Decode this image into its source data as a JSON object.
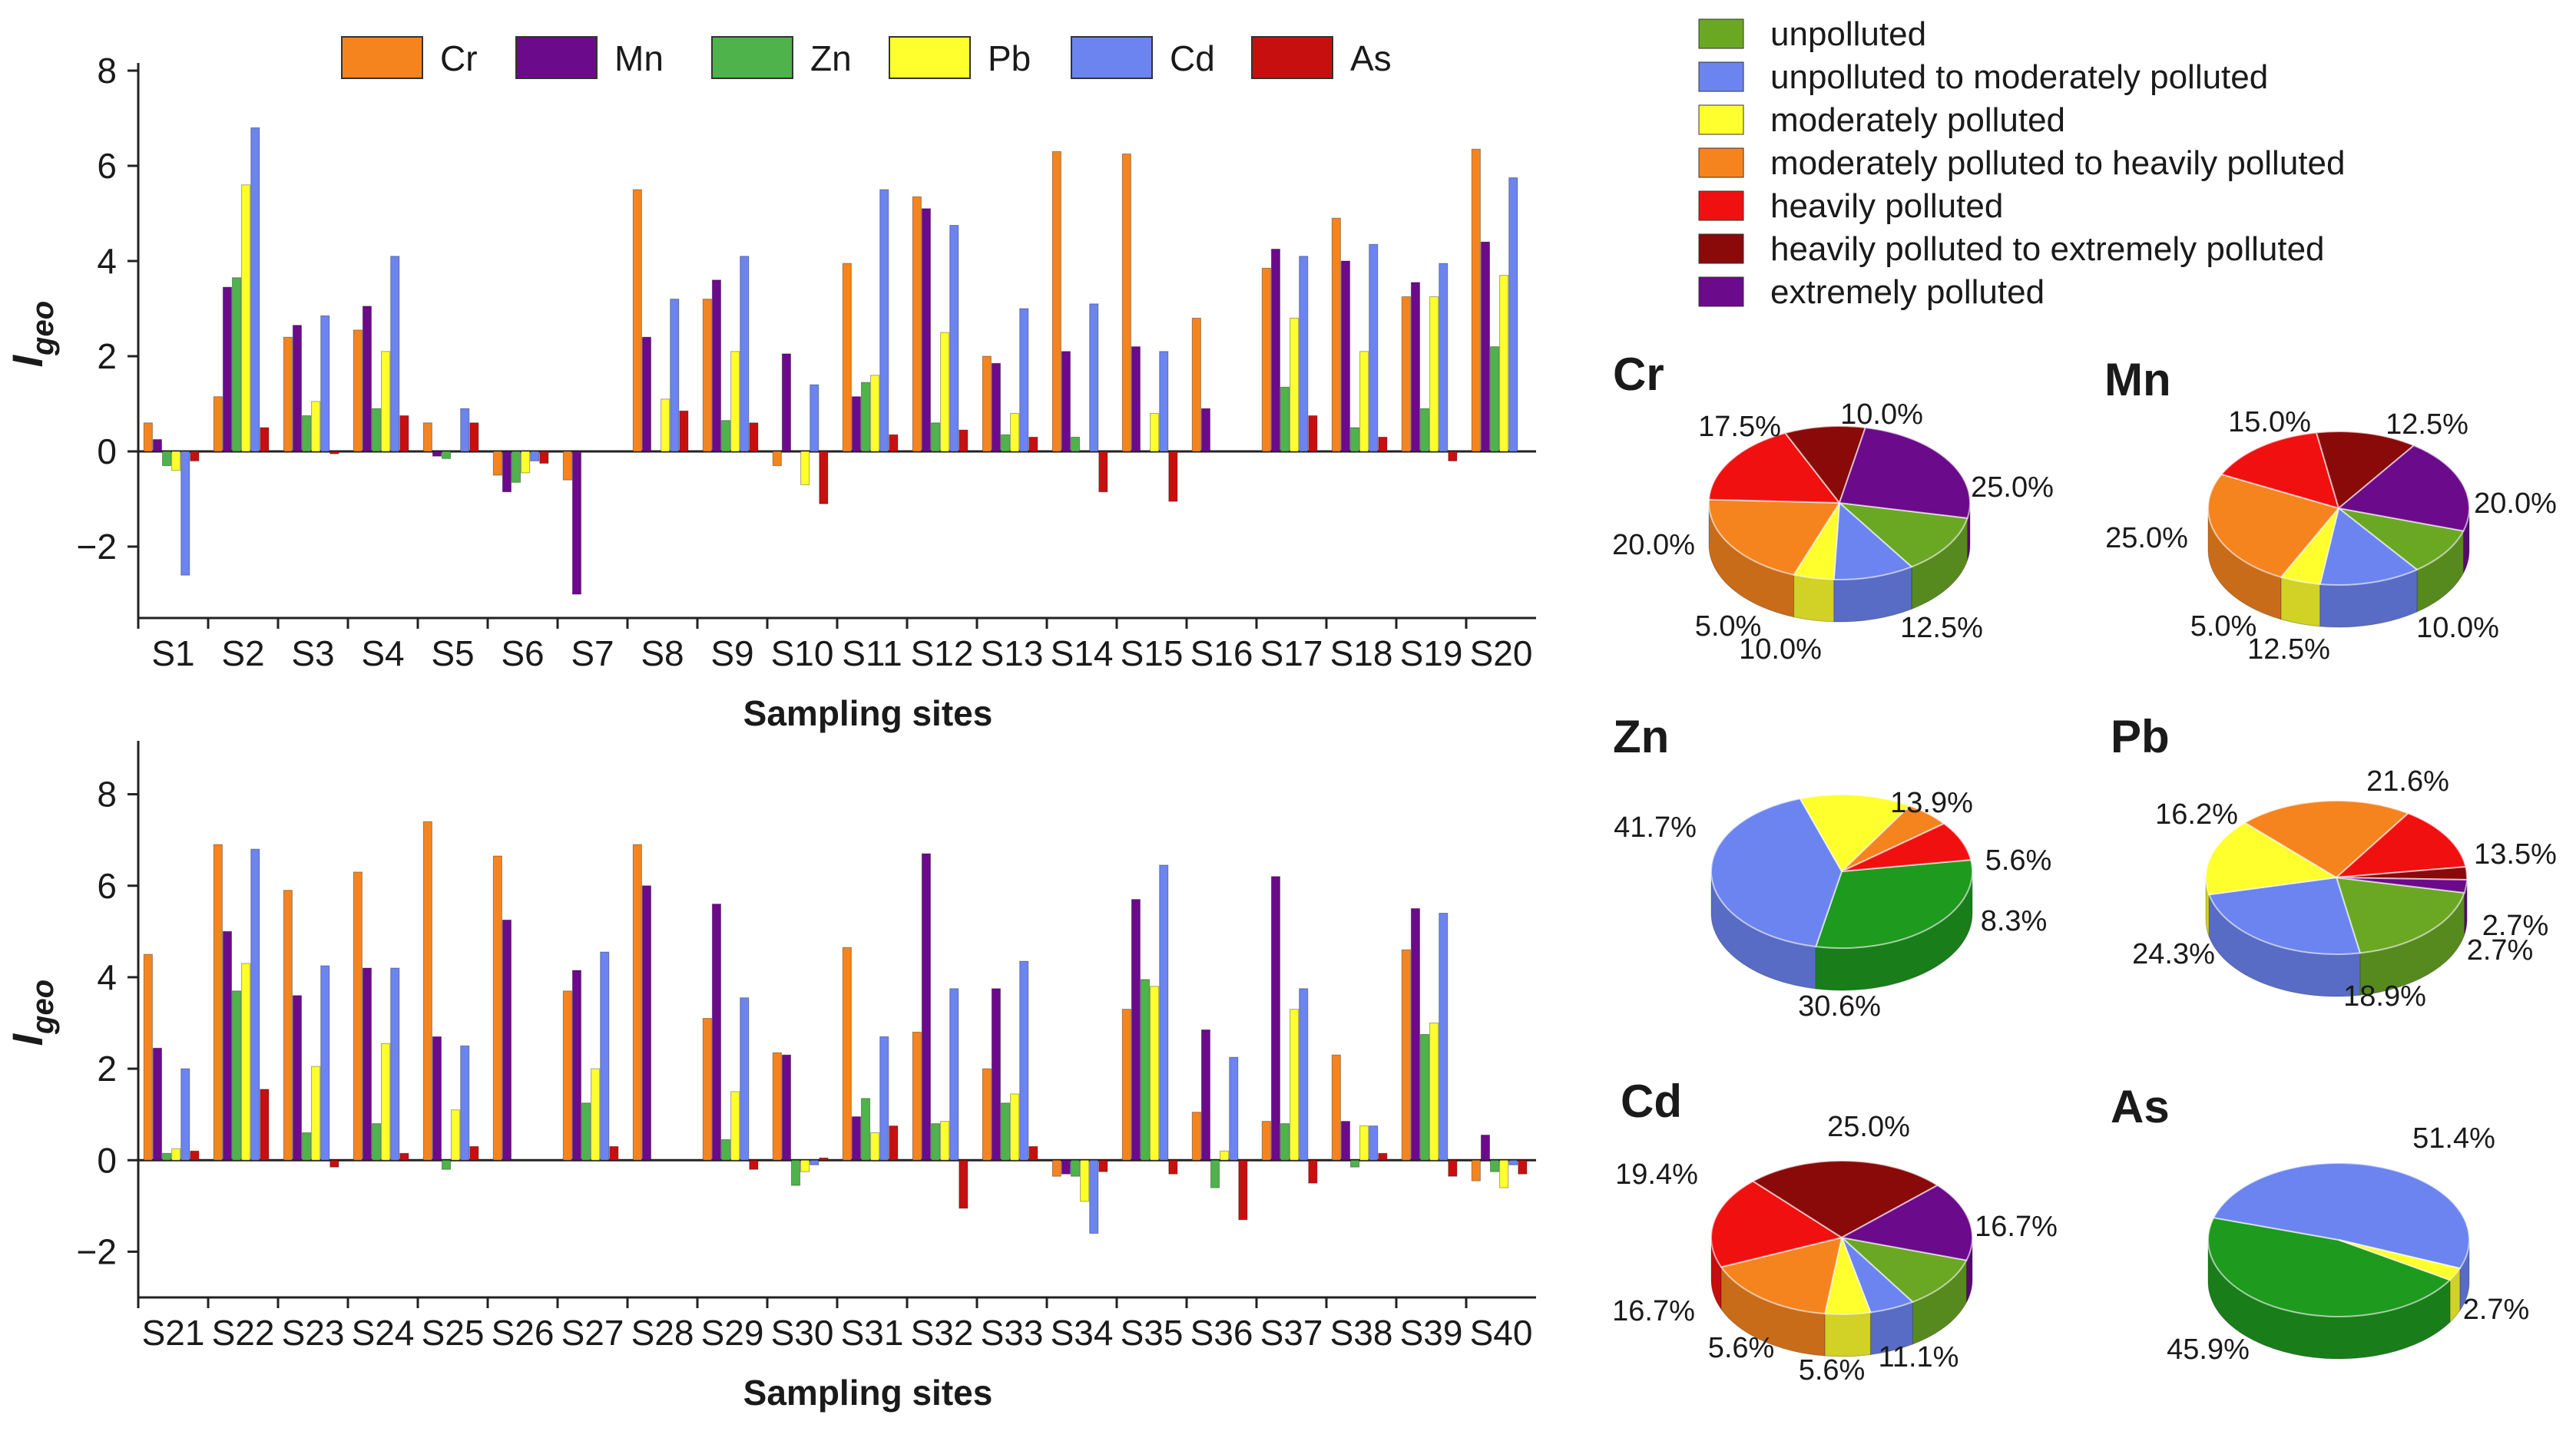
{
  "colors": {
    "Cr": "#f5841f",
    "Mn": "#6b0a8a",
    "Zn": "#4eb34a",
    "Pb": "#ffff2e",
    "Cd": "#6b84f0",
    "As": "#c80f0f"
  },
  "ylabel_main": "I",
  "ylabel_sub": "geo",
  "categories_legend": [
    {
      "label": "unpolluted",
      "color": "#6aa824"
    },
    {
      "label": "unpolluted to moderately polluted",
      "color": "#6b84f0"
    },
    {
      "label": "moderately polluted",
      "color": "#ffff2e"
    },
    {
      "label": "moderately polluted to heavily polluted",
      "color": "#f5841f"
    },
    {
      "label": "heavily polluted",
      "color": "#f01010"
    },
    {
      "label": "heavily polluted to extremely polluted",
      "color": "#8a0a0a"
    },
    {
      "label": "extremely polluted",
      "color": "#6b0a8a"
    }
  ],
  "chart_data": [
    {
      "type": "bar",
      "title": "",
      "xlabel": "Sampling sites",
      "ylabel": "Igeo",
      "ylim": [
        -3.5,
        8
      ],
      "yticks": [
        -2,
        0,
        2,
        4,
        6,
        8
      ],
      "categories": [
        "S1",
        "S2",
        "S3",
        "S4",
        "S5",
        "S6",
        "S7",
        "S8",
        "S9",
        "S10",
        "S11",
        "S12",
        "S13",
        "S14",
        "S15",
        "S16",
        "S17",
        "S18",
        "S19",
        "S20"
      ],
      "series": [
        {
          "name": "Cr",
          "values": [
            0.6,
            1.15,
            2.4,
            2.55,
            0.6,
            -0.5,
            -0.6,
            5.5,
            3.2,
            -0.3,
            3.95,
            5.35,
            2.0,
            6.3,
            6.25,
            2.8,
            3.85,
            4.9,
            3.25,
            6.35
          ]
        },
        {
          "name": "Mn",
          "values": [
            0.25,
            3.45,
            2.65,
            3.05,
            -0.1,
            -0.85,
            -3.0,
            2.4,
            3.6,
            2.05,
            1.15,
            5.1,
            1.85,
            2.1,
            2.2,
            0.9,
            4.25,
            4.0,
            3.55,
            4.4
          ]
        },
        {
          "name": "Zn",
          "values": [
            -0.3,
            3.65,
            0.75,
            0.9,
            -0.15,
            -0.65,
            0,
            0,
            0.65,
            0,
            1.45,
            0.6,
            0.35,
            0.3,
            0,
            0,
            1.35,
            0.5,
            0.9,
            2.2
          ]
        },
        {
          "name": "Pb",
          "values": [
            -0.4,
            5.6,
            1.05,
            2.1,
            0,
            -0.45,
            0,
            1.1,
            2.1,
            -0.7,
            1.6,
            2.5,
            0.8,
            0,
            0.8,
            0,
            2.8,
            2.1,
            3.25,
            3.7
          ]
        },
        {
          "name": "Cd",
          "values": [
            -2.6,
            6.8,
            2.85,
            4.1,
            0.9,
            -0.2,
            0,
            3.2,
            4.1,
            1.4,
            5.5,
            4.75,
            3.0,
            3.1,
            2.1,
            0,
            4.1,
            4.35,
            3.95,
            5.75
          ]
        },
        {
          "name": "As",
          "values": [
            -0.2,
            0.5,
            -0.05,
            0.75,
            0.6,
            -0.25,
            0,
            0.85,
            0.6,
            -1.1,
            0.35,
            0.45,
            0.3,
            -0.85,
            -1.05,
            0,
            0.75,
            0.3,
            -0.2,
            0
          ]
        }
      ]
    },
    {
      "type": "bar",
      "title": "",
      "xlabel": "Sampling sites",
      "ylabel": "Igeo",
      "ylim": [
        -3,
        9
      ],
      "yticks": [
        -2,
        0,
        2,
        4,
        6,
        8
      ],
      "categories": [
        "S21",
        "S22",
        "S23",
        "S24",
        "S25",
        "S26",
        "S27",
        "S28",
        "S29",
        "S30",
        "S31",
        "S32",
        "S33",
        "S34",
        "S35",
        "S36",
        "S37",
        "S38",
        "S39",
        "S40"
      ],
      "series": [
        {
          "name": "Cr",
          "values": [
            4.5,
            6.9,
            5.9,
            6.3,
            7.4,
            6.65,
            3.7,
            6.9,
            3.1,
            2.35,
            4.65,
            2.8,
            2.0,
            -0.35,
            3.3,
            1.05,
            0.85,
            2.3,
            4.6,
            -0.45
          ]
        },
        {
          "name": "Mn",
          "values": [
            2.45,
            5.0,
            3.6,
            4.2,
            2.7,
            5.25,
            4.15,
            6.0,
            5.6,
            2.3,
            0.95,
            6.7,
            3.75,
            -0.3,
            5.7,
            2.85,
            6.2,
            0.85,
            5.5,
            0.55
          ]
        },
        {
          "name": "Zn",
          "values": [
            0.15,
            3.7,
            0.6,
            0.8,
            -0.2,
            0,
            1.25,
            0,
            0.45,
            -0.55,
            1.35,
            0.8,
            1.25,
            -0.35,
            3.95,
            -0.6,
            0.8,
            -0.15,
            2.75,
            -0.25
          ]
        },
        {
          "name": "Pb",
          "values": [
            0.25,
            4.3,
            2.05,
            2.55,
            1.1,
            0,
            2.0,
            0,
            1.5,
            -0.25,
            0.6,
            0.85,
            1.45,
            -0.9,
            3.8,
            0.2,
            3.3,
            0.75,
            3.0,
            -0.6
          ]
        },
        {
          "name": "Cd",
          "values": [
            2.0,
            6.8,
            4.25,
            4.2,
            2.5,
            0,
            4.55,
            0,
            3.55,
            -0.1,
            2.7,
            3.75,
            4.35,
            -1.6,
            6.45,
            2.25,
            3.75,
            0.75,
            5.4,
            -0.1
          ]
        },
        {
          "name": "As",
          "values": [
            0.2,
            1.55,
            -0.15,
            0.15,
            0.3,
            0,
            0.3,
            0,
            -0.2,
            0.05,
            0.75,
            -1.05,
            0.3,
            -0.25,
            -0.3,
            -1.3,
            -0.5,
            0.15,
            -0.35,
            -0.3
          ]
        }
      ]
    },
    {
      "type": "pie",
      "title": "Cr",
      "slices": [
        {
          "label": "unpolluted",
          "value": 12.5,
          "text": "12.5%"
        },
        {
          "label": "unpolluted to moderately polluted",
          "value": 10.0,
          "text": "10.0%"
        },
        {
          "label": "moderately polluted",
          "value": 5.0,
          "text": "5.0%"
        },
        {
          "label": "moderately polluted to heavily polluted",
          "value": 20.0,
          "text": "20.0%"
        },
        {
          "label": "heavily polluted",
          "value": 17.5,
          "text": "17.5%"
        },
        {
          "label": "heavily polluted to extremely polluted",
          "value": 10.0,
          "text": "10.0%"
        },
        {
          "label": "extremely polluted",
          "value": 25.0,
          "text": "25.0%"
        }
      ]
    },
    {
      "type": "pie",
      "title": "Mn",
      "slices": [
        {
          "label": "unpolluted",
          "value": 10.0,
          "text": "10.0%"
        },
        {
          "label": "unpolluted to moderately polluted",
          "value": 12.5,
          "text": "12.5%"
        },
        {
          "label": "moderately polluted",
          "value": 5.0,
          "text": "5.0%"
        },
        {
          "label": "moderately polluted to heavily polluted",
          "value": 25.0,
          "text": "25.0%"
        },
        {
          "label": "heavily polluted",
          "value": 15.0,
          "text": "15.0%"
        },
        {
          "label": "heavily polluted to extremely polluted",
          "value": 12.5,
          "text": "12.5%"
        },
        {
          "label": "extremely polluted",
          "value": 20.0,
          "text": "20.0%"
        }
      ]
    },
    {
      "type": "pie",
      "title": "Zn",
      "slices": [
        {
          "label": "unpolluted",
          "value": 30.6,
          "text": "30.6%",
          "color": "#1e9a1e"
        },
        {
          "label": "unpolluted to moderately polluted",
          "value": 41.7,
          "text": "41.7%"
        },
        {
          "label": "moderately polluted",
          "value": 13.9,
          "text": "13.9%"
        },
        {
          "label": "moderately polluted to heavily polluted",
          "value": 5.6,
          "text": "5.6%"
        },
        {
          "label": "heavily polluted",
          "value": 8.3,
          "text": "8.3%"
        }
      ]
    },
    {
      "type": "pie",
      "title": "Pb",
      "slices": [
        {
          "label": "unpolluted",
          "value": 18.9,
          "text": "18.9%"
        },
        {
          "label": "unpolluted to moderately polluted",
          "value": 24.3,
          "text": "24.3%"
        },
        {
          "label": "moderately polluted",
          "value": 16.2,
          "text": "16.2%"
        },
        {
          "label": "moderately polluted to heavily polluted",
          "value": 21.6,
          "text": "21.6%"
        },
        {
          "label": "heavily polluted",
          "value": 13.5,
          "text": "13.5%"
        },
        {
          "label": "heavily polluted to extremely polluted",
          "value": 2.7,
          "text": "2.7%"
        },
        {
          "label": "extremely polluted",
          "value": 2.7,
          "text": "2.7%"
        }
      ]
    },
    {
      "type": "pie",
      "title": "Cd",
      "slices": [
        {
          "label": "unpolluted",
          "value": 11.1,
          "text": "11.1%"
        },
        {
          "label": "unpolluted to moderately polluted",
          "value": 5.6,
          "text": "5.6%"
        },
        {
          "label": "moderately polluted",
          "value": 5.6,
          "text": "5.6%"
        },
        {
          "label": "moderately polluted to heavily polluted",
          "value": 16.7,
          "text": "16.7%"
        },
        {
          "label": "heavily polluted",
          "value": 19.4,
          "text": "19.4%"
        },
        {
          "label": "heavily polluted to extremely polluted",
          "value": 25.0,
          "text": "25.0%"
        },
        {
          "label": "extremely polluted",
          "value": 16.7,
          "text": "16.7%"
        }
      ]
    },
    {
      "type": "pie",
      "title": "As",
      "slices": [
        {
          "label": "unpolluted",
          "value": 45.9,
          "text": "45.9%",
          "color": "#1e9a1e"
        },
        {
          "label": "unpolluted to moderately polluted",
          "value": 51.4,
          "text": "51.4%"
        },
        {
          "label": "moderately polluted",
          "value": 2.7,
          "text": "2.7%"
        }
      ]
    }
  ]
}
